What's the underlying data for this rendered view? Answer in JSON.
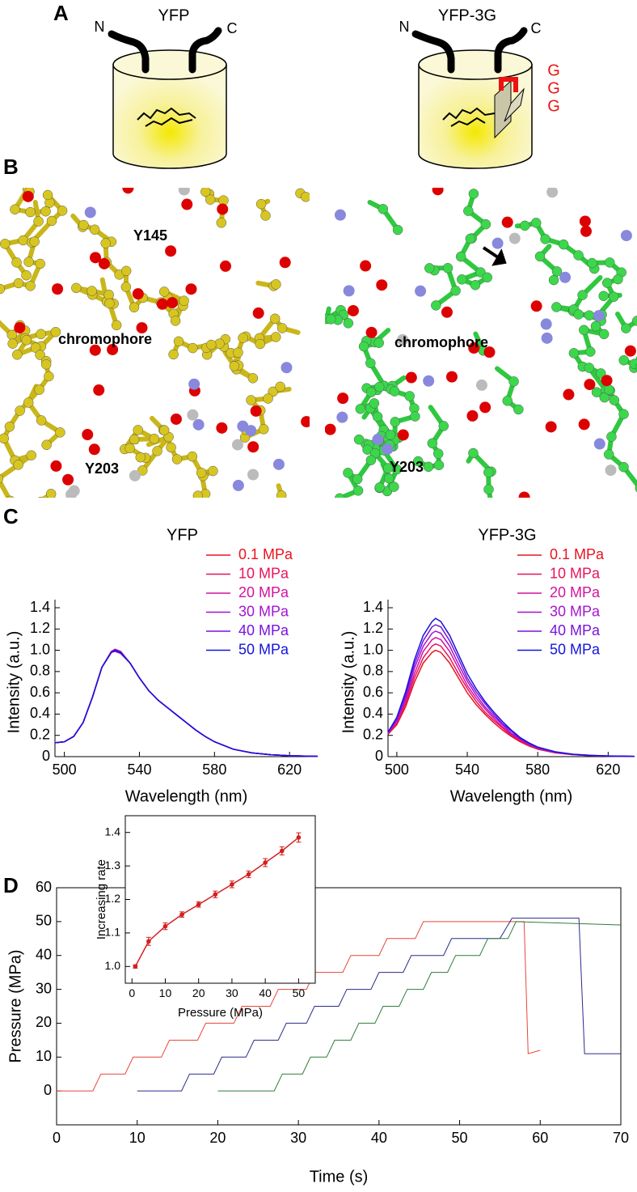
{
  "figure": {
    "panel_a": {
      "label": "A",
      "left_title": "YFP",
      "right_title": "YFP-3G",
      "left_n": "N",
      "left_c": "C",
      "right_n": "N",
      "right_c": "C",
      "g_labels": [
        "G",
        "G",
        "G"
      ]
    },
    "panel_b": {
      "label": "B",
      "left_labels": [
        "Y145",
        "chromophore",
        "Y203"
      ],
      "right_labels": [
        "chromophore",
        "Y203"
      ]
    },
    "panel_c": {
      "label": "C"
    },
    "panel_d": {
      "label": "D"
    }
  },
  "chart_data": [
    {
      "type": "line",
      "title": "YFP",
      "xlabel": "Wavelength (nm)",
      "ylabel": "Intensity (a.u.)",
      "xlim": [
        495,
        635
      ],
      "ylim": [
        0,
        1.4
      ],
      "xticks": [
        500,
        540,
        580,
        620
      ],
      "yticks": [
        0,
        0.2,
        0.4,
        0.6,
        0.8,
        {
          "value": 1,
          "label": "1.0"
        },
        1.2,
        1.4
      ],
      "legend": "upper right",
      "box": false,
      "x": [
        495,
        500,
        505,
        510,
        515,
        520,
        525,
        527,
        530,
        535,
        540,
        545,
        550,
        555,
        560,
        565,
        570,
        575,
        580,
        590,
        600,
        610,
        620,
        635
      ],
      "series": [
        {
          "name": "0.1 MPa",
          "color": "#e8141e",
          "values": [
            0.13,
            0.14,
            0.19,
            0.32,
            0.56,
            0.84,
            0.98,
            1.0,
            0.98,
            0.88,
            0.74,
            0.62,
            0.53,
            0.46,
            0.39,
            0.32,
            0.25,
            0.19,
            0.14,
            0.07,
            0.035,
            0.018,
            0.009,
            0.003
          ]
        },
        {
          "name": "10 MPa",
          "color": "#e8145a",
          "values": [
            0.13,
            0.14,
            0.19,
            0.32,
            0.56,
            0.84,
            0.98,
            1.0,
            0.98,
            0.88,
            0.74,
            0.62,
            0.53,
            0.46,
            0.39,
            0.32,
            0.25,
            0.19,
            0.14,
            0.07,
            0.035,
            0.018,
            0.009,
            0.003
          ]
        },
        {
          "name": "20 MPa",
          "color": "#d214a0",
          "values": [
            0.13,
            0.14,
            0.19,
            0.32,
            0.56,
            0.84,
            0.99,
            1.01,
            0.99,
            0.88,
            0.74,
            0.62,
            0.53,
            0.46,
            0.39,
            0.32,
            0.25,
            0.19,
            0.14,
            0.07,
            0.035,
            0.018,
            0.009,
            0.003
          ]
        },
        {
          "name": "30 MPa",
          "color": "#a514d2",
          "values": [
            0.13,
            0.14,
            0.19,
            0.32,
            0.56,
            0.84,
            0.98,
            1.0,
            0.98,
            0.88,
            0.74,
            0.62,
            0.53,
            0.46,
            0.39,
            0.32,
            0.25,
            0.19,
            0.14,
            0.07,
            0.035,
            0.018,
            0.009,
            0.003
          ]
        },
        {
          "name": "40 MPa",
          "color": "#7814dc",
          "values": [
            0.13,
            0.14,
            0.19,
            0.32,
            0.56,
            0.84,
            0.98,
            0.99,
            0.97,
            0.88,
            0.74,
            0.62,
            0.53,
            0.46,
            0.39,
            0.32,
            0.25,
            0.19,
            0.14,
            0.07,
            0.035,
            0.018,
            0.009,
            0.003
          ]
        },
        {
          "name": "50 MPa",
          "color": "#1414dc",
          "values": [
            0.13,
            0.14,
            0.19,
            0.32,
            0.56,
            0.84,
            0.98,
            1.0,
            0.98,
            0.88,
            0.74,
            0.62,
            0.53,
            0.46,
            0.39,
            0.32,
            0.25,
            0.19,
            0.14,
            0.07,
            0.035,
            0.018,
            0.009,
            0.003
          ]
        }
      ]
    },
    {
      "type": "line",
      "title": "YFP-3G",
      "xlabel": "Wavelength (nm)",
      "ylabel": "Intensity (a.u.)",
      "xlim": [
        495,
        635
      ],
      "ylim": [
        0,
        1.4
      ],
      "xticks": [
        500,
        540,
        580,
        620
      ],
      "yticks": [
        0,
        0.2,
        0.4,
        0.6,
        0.8,
        {
          "value": 1,
          "label": "1.0"
        },
        1.2,
        1.4
      ],
      "legend": "upper right",
      "box": false,
      "x": [
        495,
        500,
        505,
        510,
        515,
        520,
        522,
        525,
        530,
        535,
        540,
        545,
        550,
        555,
        560,
        565,
        570,
        575,
        580,
        590,
        600,
        610,
        620,
        635
      ],
      "series": [
        {
          "name": "0.1 MPa",
          "color": "#e8141e",
          "values": [
            0.21,
            0.3,
            0.47,
            0.7,
            0.88,
            0.98,
            1.0,
            0.98,
            0.88,
            0.74,
            0.6,
            0.49,
            0.4,
            0.32,
            0.25,
            0.19,
            0.14,
            0.1,
            0.07,
            0.035,
            0.018,
            0.009,
            0.005,
            0.002
          ]
        },
        {
          "name": "10 MPa",
          "color": "#e8145a",
          "values": [
            0.21,
            0.31,
            0.5,
            0.74,
            0.93,
            1.04,
            1.06,
            1.04,
            0.93,
            0.78,
            0.64,
            0.52,
            0.42,
            0.34,
            0.27,
            0.2,
            0.15,
            0.11,
            0.07,
            0.037,
            0.019,
            0.01,
            0.005,
            0.002
          ]
        },
        {
          "name": "20 MPa",
          "color": "#d214a0",
          "values": [
            0.22,
            0.33,
            0.53,
            0.78,
            0.99,
            1.1,
            1.12,
            1.1,
            0.99,
            0.83,
            0.67,
            0.55,
            0.45,
            0.36,
            0.28,
            0.21,
            0.16,
            0.11,
            0.08,
            0.039,
            0.02,
            0.01,
            0.006,
            0.002
          ]
        },
        {
          "name": "30 MPa",
          "color": "#a514d2",
          "values": [
            0.22,
            0.34,
            0.55,
            0.83,
            1.04,
            1.16,
            1.18,
            1.16,
            1.04,
            0.87,
            0.71,
            0.58,
            0.47,
            0.38,
            0.3,
            0.22,
            0.17,
            0.12,
            0.08,
            0.041,
            0.021,
            0.011,
            0.006,
            0.002
          ]
        },
        {
          "name": "40 MPa",
          "color": "#7814dc",
          "values": [
            0.23,
            0.36,
            0.58,
            0.87,
            1.09,
            1.22,
            1.24,
            1.22,
            1.09,
            0.92,
            0.74,
            0.61,
            0.5,
            0.4,
            0.31,
            0.24,
            0.17,
            0.12,
            0.09,
            0.043,
            0.022,
            0.011,
            0.006,
            0.002
          ]
        },
        {
          "name": "50 MPa",
          "color": "#1414dc",
          "values": [
            0.23,
            0.37,
            0.61,
            0.91,
            1.14,
            1.27,
            1.3,
            1.27,
            1.14,
            0.96,
            0.78,
            0.64,
            0.52,
            0.42,
            0.33,
            0.25,
            0.18,
            0.13,
            0.09,
            0.046,
            0.023,
            0.012,
            0.007,
            0.003
          ]
        }
      ]
    },
    {
      "type": "line",
      "xlabel": "Time (s)",
      "ylabel": "Pressure (MPa)",
      "box": true,
      "xlim": [
        0,
        70
      ],
      "ylim": [
        -10,
        60
      ],
      "xticks": [
        0,
        10,
        20,
        30,
        40,
        50,
        60,
        70
      ],
      "yticks": [
        0,
        10,
        20,
        30,
        40,
        50,
        60
      ],
      "series": [
        {
          "color": "#e8463a",
          "x": [
            0,
            4.5,
            5.5,
            8.5,
            9.5,
            13,
            14,
            17.5,
            18.5,
            22,
            23,
            26.5,
            27.5,
            31,
            32,
            35.5,
            36.5,
            40,
            41,
            44.5,
            45.5,
            58,
            58.5,
            60
          ],
          "values": [
            0,
            0,
            5,
            5,
            10,
            10,
            15,
            15,
            20,
            20,
            25,
            25,
            30,
            30,
            35,
            35,
            40,
            40,
            45,
            45,
            50,
            50,
            11,
            12
          ]
        },
        {
          "color": "#2a2a8c",
          "x": [
            10,
            15.5,
            16.5,
            19.5,
            20.5,
            23.5,
            24.5,
            27.5,
            28.5,
            31,
            32,
            35,
            36,
            39,
            40,
            43,
            44,
            48,
            49,
            55,
            56.5,
            64.8,
            65.5,
            70
          ],
          "values": [
            0,
            0,
            5,
            5,
            10,
            10,
            15,
            15,
            20,
            20,
            25,
            25,
            30,
            30,
            35,
            35,
            40,
            40,
            45,
            45,
            51,
            51,
            11,
            11
          ]
        },
        {
          "color": "#2e7d3a",
          "x": [
            20,
            27,
            28,
            30.5,
            31.5,
            33.5,
            34.5,
            36.5,
            37.5,
            39.5,
            40.5,
            42.5,
            43.5,
            45.5,
            46.5,
            48.5,
            49.5,
            52.5,
            53.5,
            56,
            57,
            70
          ],
          "values": [
            0,
            0,
            5,
            5,
            10,
            10,
            15,
            15,
            20,
            20,
            25,
            25,
            30,
            30,
            35,
            35,
            40,
            40,
            45,
            45,
            50,
            49
          ]
        }
      ]
    },
    {
      "type": "line",
      "xlabel": "Pressure (MPa)",
      "ylabel": "Increasing rate",
      "box": true,
      "xlim": [
        -2,
        55
      ],
      "ylim": [
        0.95,
        1.45
      ],
      "xticks": [
        0,
        10,
        20,
        30,
        40,
        50
      ],
      "yticks": [
        {
          "value": 1,
          "label": "1.0"
        },
        1.1,
        1.2,
        1.3,
        1.4
      ],
      "series": [
        {
          "color": "#d42020",
          "marker": true,
          "x": [
            1,
            5,
            10,
            15,
            20,
            25,
            30,
            35,
            40,
            45,
            50
          ],
          "values": [
            1.0,
            1.075,
            1.12,
            1.155,
            1.185,
            1.215,
            1.245,
            1.275,
            1.31,
            1.345,
            1.385
          ],
          "errors": [
            0.005,
            0.012,
            0.01,
            0.008,
            0.008,
            0.01,
            0.01,
            0.01,
            0.012,
            0.012,
            0.014
          ]
        }
      ]
    }
  ]
}
